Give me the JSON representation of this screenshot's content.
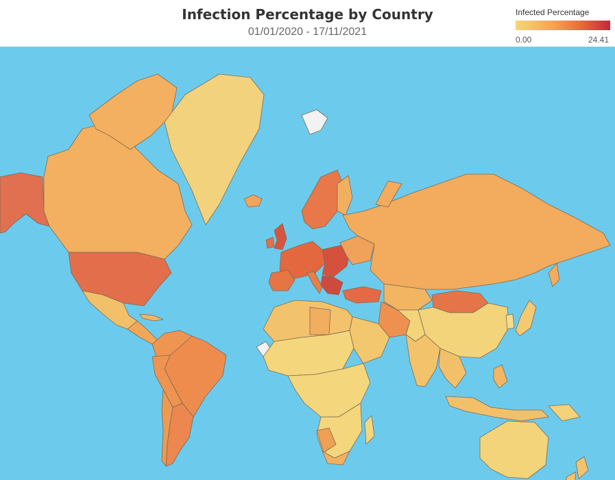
{
  "header": {
    "title": "Infection Percentage by Country",
    "date_range": "01/01/2020 - 17/11/2021"
  },
  "legend": {
    "title": "Infected Percentage",
    "min": "0.00",
    "max": "24.41"
  },
  "colors": {
    "ocean": "#6ccbed",
    "low": "#f4d779",
    "mid": "#f3a45a",
    "high": "#e9683e",
    "max": "#c8273d",
    "no_data": "#f2f2f2"
  },
  "map": {
    "projection": "mercator",
    "legend_placement": "top-right"
  }
}
